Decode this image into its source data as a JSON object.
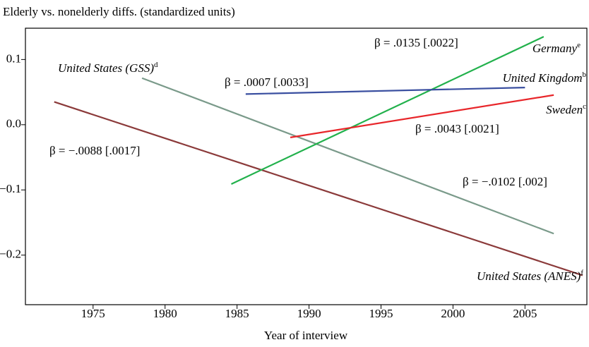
{
  "chart_data": {
    "type": "line",
    "title": "Elderly vs. nonelderly diffs. (standardized units)",
    "x_label": "Year of interview",
    "xlim": [
      1970.3,
      2009.3
    ],
    "xticks": [
      1975,
      1980,
      1985,
      1990,
      1995,
      2000,
      2005
    ],
    "ylim": [
      -0.276,
      0.148
    ],
    "yticks": [
      0.1,
      {
        "value": 0,
        "label": "0.0"
      },
      {
        "value": -0.1,
        "label": "−0.1"
      },
      {
        "value": -0.2,
        "label": "−0.2"
      }
    ],
    "grid": false,
    "series": [
      {
        "name": "United States (ANES)",
        "note": "f",
        "annotation": "β = −.0088 [.0017]",
        "color": "#8b3a3a",
        "x": [
          1972.3,
          2009.0
        ],
        "values": [
          0.035,
          -0.231
        ]
      },
      {
        "name": "United States (GSS)",
        "note": "d",
        "annotation": "β = −.0102 [.002]",
        "color": "#7a9a8a",
        "x": [
          1978.4,
          2007.0
        ],
        "values": [
          0.0715,
          -0.167
        ]
      },
      {
        "name": "Germany",
        "note": "e",
        "annotation": "β = .0135 [.0022]",
        "color": "#22b14c",
        "x": [
          1984.6,
          2006.3
        ],
        "values": [
          -0.091,
          0.135
        ]
      },
      {
        "name": "United Kingdom",
        "note": "b",
        "annotation": "β = .0007 [.0033]",
        "color": "#3a4fa0",
        "x": [
          1985.6,
          2005.0
        ],
        "values": [
          0.047,
          0.057
        ]
      },
      {
        "name": "Sweden",
        "note": "c",
        "annotation": "β = .0043 [.0021]",
        "color": "#e8262a",
        "x": [
          1988.7,
          2007.0
        ],
        "values": [
          -0.0195,
          0.0455
        ]
      }
    ]
  }
}
